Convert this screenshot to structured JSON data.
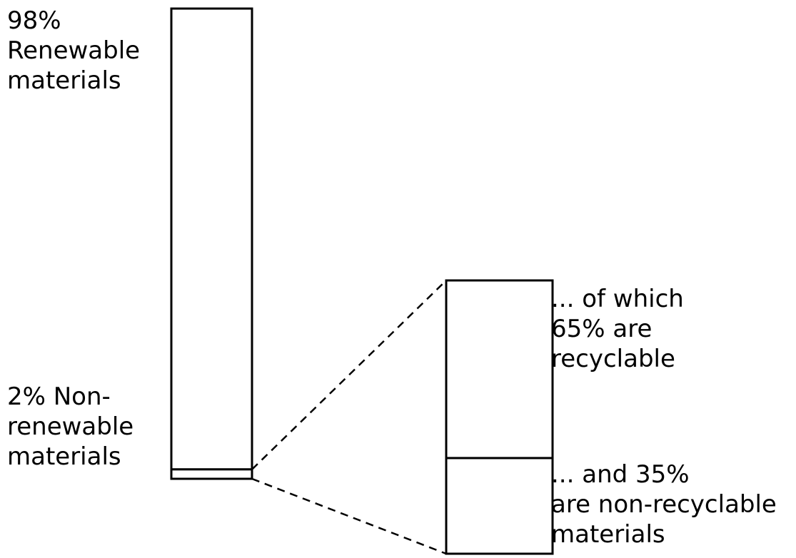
{
  "chart_data": {
    "type": "bar",
    "stacked": true,
    "bars": [
      {
        "segments": [
          {
            "value": 98,
            "label_lines": [
              "98%",
              "Renewable",
              "materials"
            ]
          },
          {
            "value": 2,
            "label_lines": [
              "2% Non-",
              "renewable",
              "materials"
            ]
          }
        ]
      },
      {
        "breakdown_of": "Non-renewable materials",
        "segments": [
          {
            "value": 65,
            "label_lines": [
              "... of which",
              "65% are",
              "recyclable"
            ]
          },
          {
            "value": 35,
            "label_lines": [
              "... and 35%",
              "are non-recyclable",
              "materials"
            ]
          }
        ]
      }
    ],
    "colors": {
      "stroke": "#000000",
      "fill": "#ffffff"
    }
  }
}
